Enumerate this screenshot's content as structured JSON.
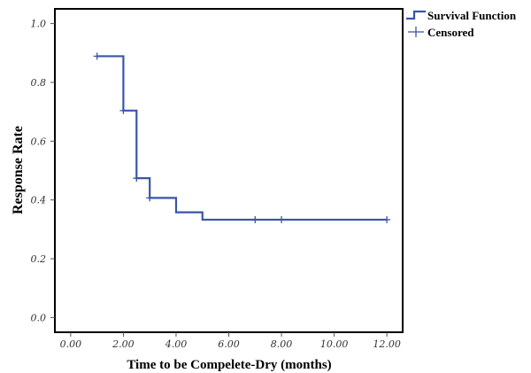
{
  "colors": {
    "series": "#3a55a8",
    "frame": "#000000",
    "tick": "#555555"
  },
  "chart_data": {
    "type": "line",
    "subtype": "kaplan-meier-step",
    "title": "",
    "xlabel": "Time to be Compelete-Dry (months)",
    "ylabel": "Response Rate",
    "xlim": [
      -0.6,
      12.6
    ],
    "ylim": [
      -0.05,
      1.05
    ],
    "x_ticks": [
      0,
      2,
      4,
      6,
      8,
      10,
      12
    ],
    "x_tick_labels": [
      "0.00",
      "2.00",
      "4.00",
      "6.00",
      "8.00",
      "10.00",
      "12.00"
    ],
    "y_ticks": [
      0,
      0.2,
      0.4,
      0.6,
      0.8,
      1.0
    ],
    "y_tick_labels": [
      "0.0",
      "0.2",
      "0.4",
      "0.6",
      "0.8",
      "1.0"
    ],
    "grid": false,
    "legend_position": "top-right outside",
    "series": [
      {
        "name": "Survival Function",
        "icon": "step-line",
        "x": [
          1,
          2,
          2.5,
          3,
          4,
          5,
          12
        ],
        "y": [
          0.889,
          0.704,
          0.474,
          0.407,
          0.358,
          0.333,
          0.333
        ]
      },
      {
        "name": "Censored",
        "icon": "plus-marker",
        "x": [
          1,
          2,
          2.5,
          3,
          7,
          8,
          12
        ],
        "y": [
          0.889,
          0.704,
          0.474,
          0.407,
          0.333,
          0.333,
          0.333
        ]
      }
    ]
  }
}
